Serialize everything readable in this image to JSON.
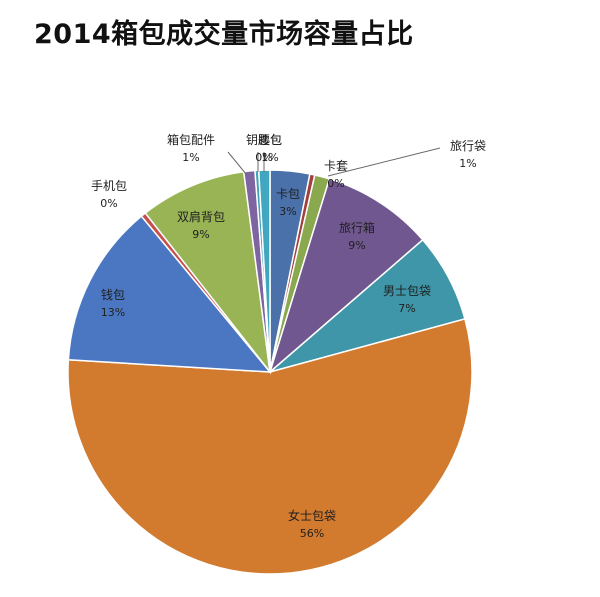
{
  "chart_data": {
    "type": "pie",
    "title": "2014箱包成交量市场容量占比",
    "slices": [
      {
        "name": "卡包",
        "label": "3%",
        "value": 3.2,
        "color": "#4a71a9"
      },
      {
        "name": "卡套",
        "label": "0%",
        "value": 0.4,
        "color": "#a13f3c"
      },
      {
        "name": "旅行袋",
        "label": "1%",
        "value": 1.2,
        "color": "#8aa84e"
      },
      {
        "name": "旅行箱",
        "label": "9%",
        "value": 9.0,
        "color": "#71578f"
      },
      {
        "name": "男士包袋",
        "label": "7%",
        "value": 7.2,
        "color": "#3e96a8"
      },
      {
        "name": "女士包袋",
        "label": "56%",
        "value": 55.8,
        "color": "#d27a2e"
      },
      {
        "name": "钱包",
        "label": "13%",
        "value": 13.2,
        "color": "#4b77c2"
      },
      {
        "name": "手机包",
        "label": "0%",
        "value": 0.4,
        "color": "#c6504d"
      },
      {
        "name": "双肩背包",
        "label": "9%",
        "value": 8.6,
        "color": "#98b455"
      },
      {
        "name": "箱包配件",
        "label": "1%",
        "value": 0.9,
        "color": "#7e64a0"
      },
      {
        "name": "钥匙包",
        "label": "0%",
        "value": 0.3,
        "color": "#3fa2b8"
      },
      {
        "name": "腰包",
        "label": "1%",
        "value": 0.9,
        "color": "#41a6c0"
      }
    ]
  }
}
